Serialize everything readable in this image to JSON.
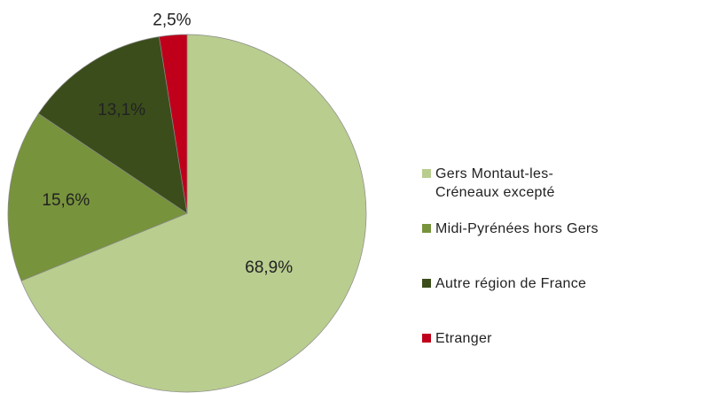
{
  "chart_data": {
    "type": "pie",
    "categories": [
      "Gers Montaut-les-Créneaux excepté",
      "Midi-Pyrénées hors Gers",
      "Autre région de France",
      "Etranger"
    ],
    "values": [
      68.9,
      15.6,
      13.1,
      2.5
    ],
    "value_labels": [
      "68,9%",
      "15,6%",
      "13,1%",
      "2,5%"
    ],
    "colors": [
      "#b9cd8f",
      "#77933c",
      "#3b4d1b",
      "#c0001a"
    ],
    "legend": "right"
  }
}
